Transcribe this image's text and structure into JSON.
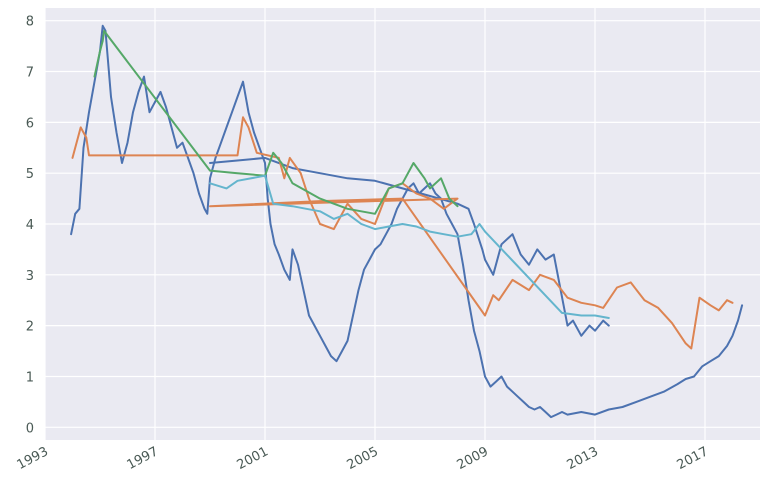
{
  "chart_data": {
    "type": "line",
    "title": "",
    "xlabel": "",
    "ylabel": "",
    "xlim": [
      1993.0,
      2019.0
    ],
    "ylim": [
      -0.25,
      8.25
    ],
    "grid": true,
    "background": "#eaeaf2",
    "x_ticks": [
      1993,
      1997,
      2001,
      2005,
      2009,
      2013,
      2017
    ],
    "x_tick_labels": [
      "1993",
      "1997",
      "2001",
      "2005",
      "2009",
      "2013",
      "2017"
    ],
    "y_ticks": [
      0,
      1,
      2,
      3,
      4,
      5,
      6,
      7,
      8
    ],
    "y_tick_labels": [
      "0",
      "1",
      "2",
      "3",
      "4",
      "5",
      "6",
      "7",
      "8"
    ],
    "series": [
      {
        "color": "#4c72b0",
        "x": [
          1993.95,
          1994.1,
          1994.25,
          1994.4,
          1994.6,
          1994.8,
          1995.0,
          1995.1,
          1995.2,
          1995.4,
          1995.6,
          1995.8,
          1996.0,
          1996.2,
          1996.4,
          1996.6,
          1996.8,
          1997.0,
          1997.2,
          1997.4,
          1997.6,
          1997.8,
          1998.0,
          1998.2,
          1998.4,
          1998.6,
          1998.8,
          1998.9,
          1999.0,
          1999.2,
          1999.4,
          1999.6,
          1999.8,
          2000.0,
          2000.2,
          2000.4,
          2000.6,
          2000.8,
          2001.0,
          2001.1,
          2001.2,
          2001.35,
          2001.5,
          2001.7,
          2001.9,
          2002.0,
          2002.2,
          2002.4,
          2002.6,
          2002.8,
          2003.0,
          2003.2,
          2003.4,
          2003.6,
          2003.8,
          2004.0,
          2004.2,
          2004.4,
          2004.6,
          2004.8,
          2005.0,
          2005.2,
          2005.4,
          2005.6,
          2005.8,
          2006.0,
          2006.2,
          2006.4,
          2006.6,
          2006.8,
          2007.0,
          2007.2,
          2007.4,
          2007.6,
          2007.8,
          2008.0,
          2008.2,
          2008.4,
          2008.6,
          2008.8,
          2009.0,
          2009.2,
          2009.4,
          2009.6,
          2009.8,
          2010.0,
          2010.2,
          2010.4,
          2010.6,
          2010.8,
          2011.0,
          2011.2,
          2011.4,
          2011.6,
          2011.8,
          2012.0,
          2012.5,
          2013.0,
          2013.5,
          2014.0,
          2014.5,
          2015.0,
          2015.5,
          2016.0,
          2016.3,
          2016.6,
          2016.9,
          2017.2,
          2017.5,
          2017.8,
          2018.0,
          2018.2,
          2018.35
        ],
        "y": [
          3.8,
          4.2,
          4.3,
          5.5,
          6.2,
          6.8,
          7.4,
          7.9,
          7.8,
          6.5,
          5.8,
          5.2,
          5.6,
          6.2,
          6.6,
          6.9,
          6.2,
          6.4,
          6.6,
          6.3,
          5.9,
          5.5,
          5.6,
          5.3,
          5.0,
          4.6,
          4.3,
          4.2,
          4.9,
          5.3,
          5.6,
          5.9,
          6.2,
          6.5,
          6.8,
          6.2,
          5.8,
          5.5,
          5.2,
          4.5,
          4.0,
          3.6,
          3.4,
          3.1,
          2.9,
          3.5,
          3.2,
          2.7,
          2.2,
          2.0,
          1.8,
          1.6,
          1.4,
          1.3,
          1.5,
          1.7,
          2.2,
          2.7,
          3.1,
          3.3,
          3.5,
          3.6,
          3.8,
          4.0,
          4.3,
          4.5,
          4.7,
          4.8,
          4.6,
          4.7,
          4.8,
          4.6,
          4.5,
          4.2,
          4.0,
          3.8,
          3.2,
          2.5,
          1.9,
          1.5,
          1.0,
          0.8,
          0.9,
          1.0,
          0.8,
          0.7,
          0.6,
          0.5,
          0.4,
          0.35,
          0.4,
          0.3,
          0.2,
          0.25,
          0.3,
          0.25,
          0.3,
          0.25,
          0.35,
          0.4,
          0.5,
          0.6,
          0.7,
          0.85,
          0.95,
          1.0,
          1.2,
          1.3,
          1.4,
          1.6,
          1.8,
          2.1,
          2.4
        ]
      },
      {
        "color": "#4c72b0",
        "x": [
          1999.0,
          2000.0,
          2001.0,
          2002.0,
          2003.0,
          2004.0,
          2005.0,
          2006.0,
          2007.0,
          2008.0,
          2008.4,
          2008.6,
          2008.9,
          2009.0,
          2009.3,
          2009.6,
          2010.0,
          2010.3,
          2010.6,
          2010.9,
          2011.2,
          2011.5,
          2012.0,
          2012.2,
          2012.5,
          2012.8,
          2013.0,
          2013.3,
          2013.5
        ],
        "y": [
          5.2,
          5.25,
          5.3,
          5.1,
          5.0,
          4.9,
          4.85,
          4.7,
          4.55,
          4.4,
          4.3,
          4.0,
          3.5,
          3.3,
          3.0,
          3.6,
          3.8,
          3.4,
          3.2,
          3.5,
          3.3,
          3.4,
          2.0,
          2.1,
          1.8,
          2.0,
          1.9,
          2.1,
          2.0
        ]
      },
      {
        "color": "#dd8452",
        "x": [
          1994.0,
          1994.3,
          1994.5,
          1994.6,
          2000.0,
          2000.2,
          2000.4,
          2000.7,
          2001.5,
          2001.7,
          2001.9,
          2002.3,
          2002.6,
          2003.0,
          2003.5,
          2004.0,
          2004.5,
          2005.0,
          2005.5,
          2006.0,
          2006.5,
          2007.0,
          2007.5,
          2008.0,
          1999.0,
          2003.0,
          2006.0,
          2009.0,
          2009.3,
          2009.5,
          2010.0,
          2010.6,
          2011.0,
          2011.5,
          2012.0,
          2012.5,
          2013.0,
          2013.3,
          2013.8,
          2014.3,
          2014.8,
          2015.3,
          2015.8,
          2016.3,
          2016.5,
          2016.8,
          2017.2,
          2017.5,
          2017.8,
          2018.0
        ],
        "y": [
          5.3,
          5.9,
          5.7,
          5.35,
          5.35,
          6.1,
          5.9,
          5.4,
          5.3,
          4.9,
          5.3,
          5.0,
          4.5,
          4.0,
          3.9,
          4.4,
          4.1,
          4.0,
          4.7,
          4.8,
          4.6,
          4.5,
          4.3,
          4.5,
          4.35,
          4.45,
          4.5,
          2.2,
          2.6,
          2.5,
          2.9,
          2.7,
          3.0,
          2.9,
          2.55,
          2.45,
          2.4,
          2.35,
          2.75,
          2.85,
          2.5,
          2.35,
          2.05,
          1.65,
          1.55,
          2.55,
          2.4,
          2.3,
          2.5,
          2.45
        ]
      },
      {
        "color": "#55a868",
        "x": [
          1994.8,
          1995.0,
          1995.1,
          1995.15,
          1999.0,
          2000.0,
          2001.0,
          2001.3,
          2001.6,
          2002.0,
          2003.0,
          2004.0,
          2005.0,
          2005.5,
          2006.0,
          2006.4,
          2006.8,
          2007.0,
          2007.4,
          2007.7,
          2008.0
        ],
        "y": [
          6.9,
          7.4,
          7.6,
          7.8,
          5.05,
          5.0,
          4.95,
          5.4,
          5.2,
          4.8,
          4.5,
          4.3,
          4.2,
          4.7,
          4.8,
          5.2,
          4.9,
          4.7,
          4.9,
          4.5,
          4.35
        ]
      },
      {
        "color": "#64b5cd",
        "x": [
          1999.0,
          1999.6,
          2000.0,
          2001.0,
          2001.3,
          2002.0,
          2002.5,
          2003.0,
          2003.5,
          2004.0,
          2004.5,
          2005.0,
          2005.5,
          2006.0,
          2006.5,
          2007.0,
          2007.5,
          2008.0,
          2008.5,
          2008.8,
          2009.0,
          2011.8,
          2012.5,
          2013.0,
          2013.5
        ],
        "y": [
          4.8,
          4.7,
          4.85,
          4.95,
          4.4,
          4.35,
          4.3,
          4.25,
          4.1,
          4.2,
          4.0,
          3.9,
          3.95,
          4.0,
          3.95,
          3.85,
          3.8,
          3.75,
          3.8,
          4.0,
          3.85,
          2.25,
          2.2,
          2.2,
          2.15
        ]
      }
    ]
  }
}
